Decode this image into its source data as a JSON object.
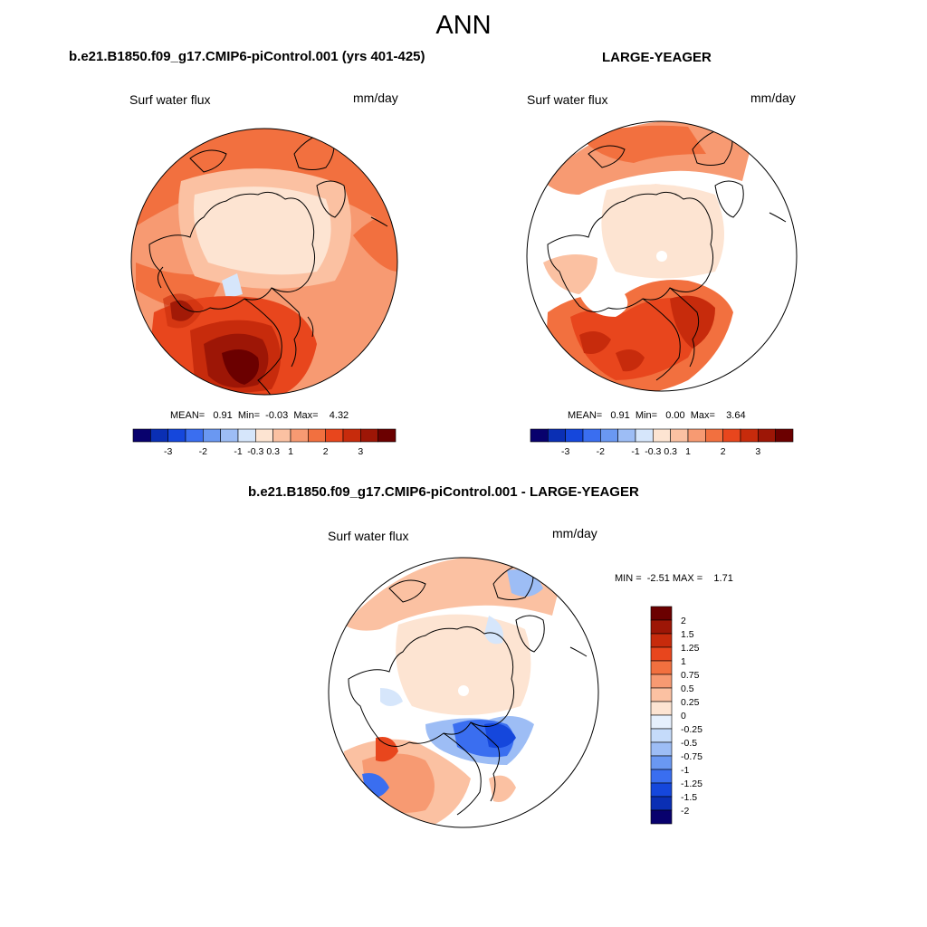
{
  "title": "ANN",
  "colors": {
    "main_scale": [
      "#08016d",
      "#0a2fb4",
      "#1547dc",
      "#3a6ef0",
      "#6a98f2",
      "#9dbdf5",
      "#d6e6fb",
      "#fde4d2",
      "#fbc1a2",
      "#f79a72",
      "#f2703f",
      "#e8461d",
      "#c72b0c",
      "#9d1606",
      "#6b0000"
    ],
    "diff_scale": [
      "#6b0000",
      "#9d1606",
      "#c72b0c",
      "#e8461d",
      "#f2703f",
      "#f79a72",
      "#fbc1a2",
      "#fde4d2",
      "#e6f0fd",
      "#c5dbfa",
      "#9dbdf5",
      "#6a98f2",
      "#3a6ef0",
      "#1547dc",
      "#0a2fb4",
      "#08016d"
    ],
    "land_fill": "#ffffff",
    "coast": "#000000"
  },
  "panels": {
    "left": {
      "title": "b.e21.B1850.f09_g17.CMIP6-piControl.001 (yrs 401-425)",
      "variable": "Surf water flux",
      "units": "mm/day",
      "stats": "MEAN=   0.91  Min=  -0.03  Max=    4.32",
      "mean": 0.91,
      "min": -0.03,
      "max": 4.32,
      "colorbar_labels": [
        "-3",
        "-2",
        "-1",
        "-0.3",
        "0.3",
        "1",
        "2",
        "3"
      ]
    },
    "right": {
      "title": "LARGE-YEAGER",
      "variable": "Surf water flux",
      "units": "mm/day",
      "stats": "MEAN=   0.91  Min=   0.00  Max=    3.64",
      "mean": 0.91,
      "min": 0.0,
      "max": 3.64,
      "colorbar_labels": [
        "-3",
        "-2",
        "-1",
        "-0.3",
        "0.3",
        "1",
        "2",
        "3"
      ]
    },
    "diff": {
      "title": "b.e21.B1850.f09_g17.CMIP6-piControl.001 - LARGE-YEAGER",
      "variable": "Surf water flux",
      "units": "mm/day",
      "stats": "MIN =  -2.51 MAX =    1.71",
      "min": -2.51,
      "max": 1.71,
      "colorbar_labels": [
        "2",
        "1.5",
        "1.25",
        "1",
        "0.75",
        "0.5",
        "0.25",
        "0",
        "-0.25",
        "-0.5",
        "-0.75",
        "-1",
        "-1.25",
        "-1.5",
        "-2"
      ]
    }
  }
}
